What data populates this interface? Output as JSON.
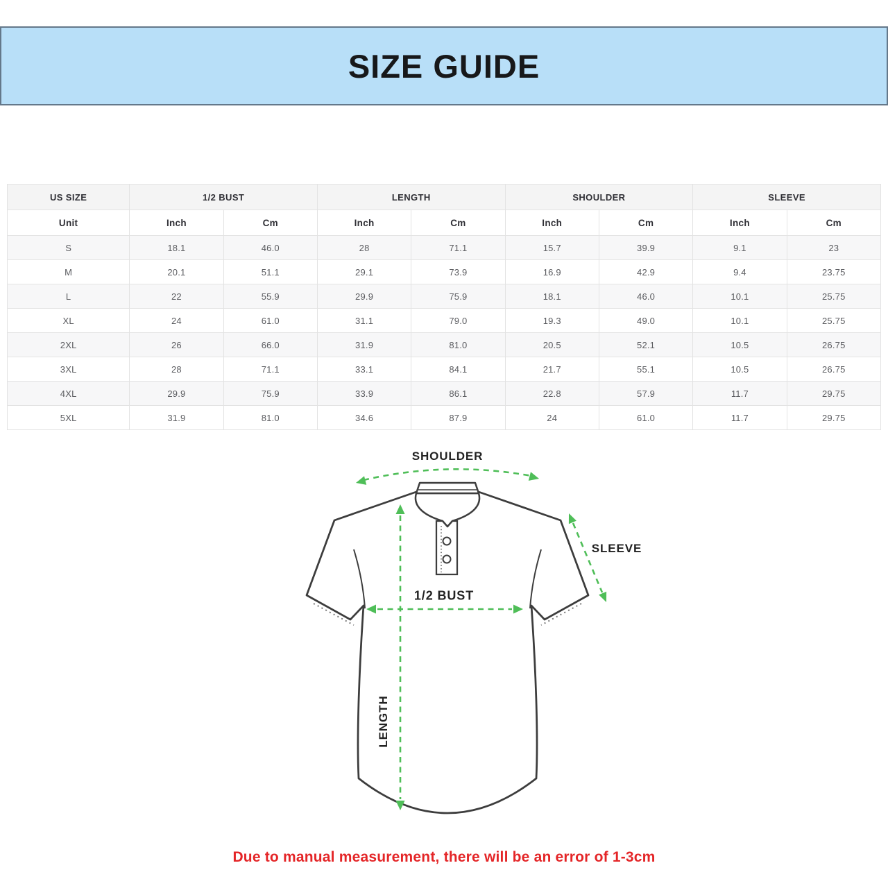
{
  "banner": {
    "title": "SIZE GUIDE",
    "bg_color": "#b8dff8",
    "border_color": "#64788a"
  },
  "table": {
    "groups": [
      {
        "label": "US SIZE"
      },
      {
        "label": "1/2 BUST"
      },
      {
        "label": "LENGTH"
      },
      {
        "label": "SHOULDER"
      },
      {
        "label": "SLEEVE"
      }
    ],
    "unit_row": [
      "Unit",
      "Inch",
      "Cm",
      "Inch",
      "Cm",
      "Inch",
      "Cm",
      "Inch",
      "Cm"
    ],
    "rows": [
      [
        "S",
        "18.1",
        "46.0",
        "28",
        "71.1",
        "15.7",
        "39.9",
        "9.1",
        "23"
      ],
      [
        "M",
        "20.1",
        "51.1",
        "29.1",
        "73.9",
        "16.9",
        "42.9",
        "9.4",
        "23.75"
      ],
      [
        "L",
        "22",
        "55.9",
        "29.9",
        "75.9",
        "18.1",
        "46.0",
        "10.1",
        "25.75"
      ],
      [
        "XL",
        "24",
        "61.0",
        "31.1",
        "79.0",
        "19.3",
        "49.0",
        "10.1",
        "25.75"
      ],
      [
        "2XL",
        "26",
        "66.0",
        "31.9",
        "81.0",
        "20.5",
        "52.1",
        "10.5",
        "26.75"
      ],
      [
        "3XL",
        "28",
        "71.1",
        "33.1",
        "84.1",
        "21.7",
        "55.1",
        "10.5",
        "26.75"
      ],
      [
        "4XL",
        "29.9",
        "75.9",
        "33.9",
        "86.1",
        "22.8",
        "57.9",
        "11.7",
        "29.75"
      ],
      [
        "5XL",
        "31.9",
        "81.0",
        "34.6",
        "87.9",
        "24",
        "61.0",
        "11.7",
        "29.75"
      ]
    ]
  },
  "diagram": {
    "labels": {
      "shoulder": "SHOULDER",
      "sleeve": "SLEEVE",
      "bust": "1/2 BUST",
      "length": "LENGTH"
    },
    "arrow_color": "#4fbe58",
    "outline_color": "#3d3d3d"
  },
  "note": {
    "text": "Due to manual measurement, there will be an error of 1-3cm",
    "color": "#e42527"
  }
}
